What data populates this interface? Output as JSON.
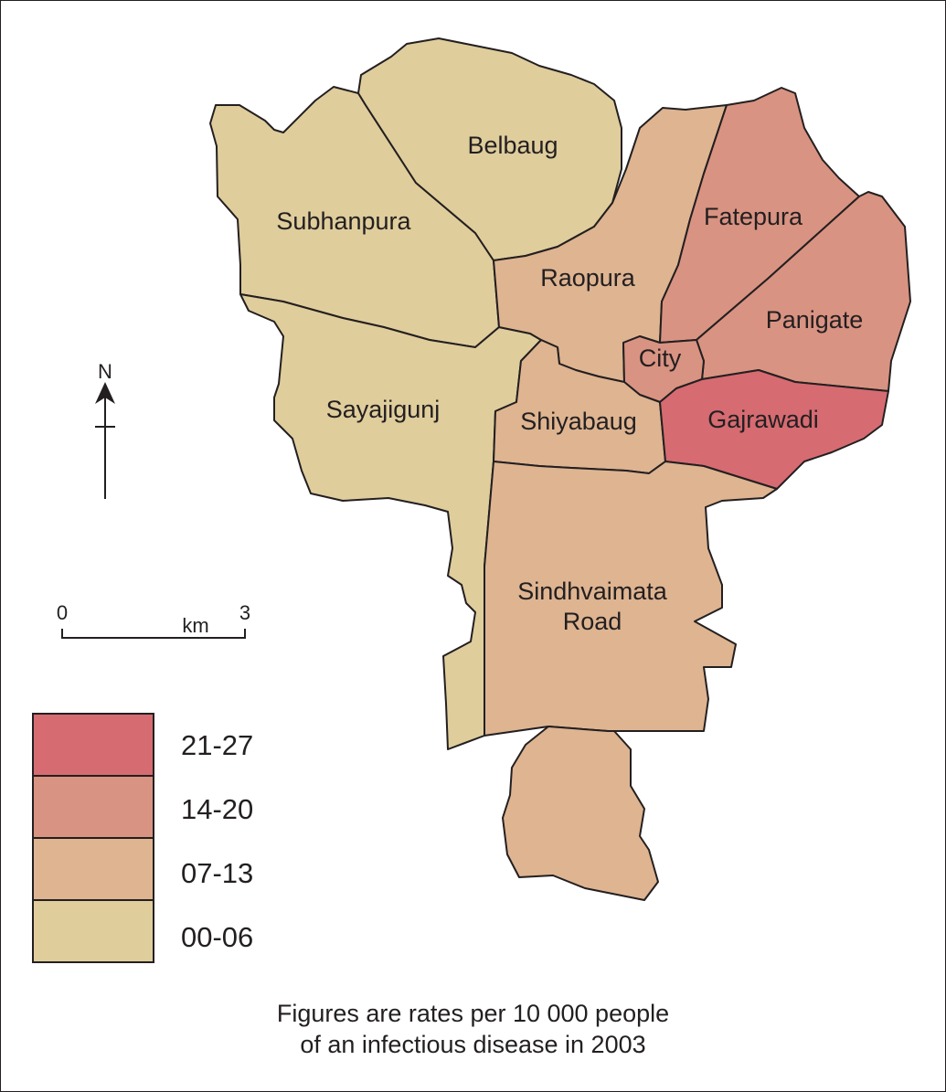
{
  "map": {
    "regions": [
      {
        "id": "subhanpura",
        "label": "Subhanpura",
        "class": "00-06"
      },
      {
        "id": "belbaug",
        "label": "Belbaug",
        "class": "00-06"
      },
      {
        "id": "sayajigunj",
        "label": "Sayajigunj",
        "class": "00-06"
      },
      {
        "id": "raopura",
        "label": "Raopura",
        "class": "07-13"
      },
      {
        "id": "fatepura",
        "label": "Fatepura",
        "class": "14-20"
      },
      {
        "id": "panigate",
        "label": "Panigate",
        "class": "14-20"
      },
      {
        "id": "city",
        "label": "City",
        "class": "14-20"
      },
      {
        "id": "shiyabaug",
        "label": "Shiyabaug",
        "class": "07-13"
      },
      {
        "id": "gajrawadi",
        "label": "Gajrawadi",
        "class": "21-27"
      },
      {
        "id": "sindhvaimata",
        "label_lines": [
          "Sindhvaimata",
          "Road"
        ],
        "class": "07-13"
      }
    ],
    "colors": {
      "00-06": "#dfcd9c",
      "07-13": "#deb491",
      "14-20": "#d99382",
      "21-27": "#d66b72"
    }
  },
  "legend": {
    "items": [
      {
        "label": "21-27",
        "color": "#d66b72"
      },
      {
        "label": "14-20",
        "color": "#d99382"
      },
      {
        "label": "07-13",
        "color": "#deb491"
      },
      {
        "label": "00-06",
        "color": "#dfcd9c"
      }
    ]
  },
  "scale_bar": {
    "start": "0",
    "end": "3",
    "unit": "km"
  },
  "north_arrow": {
    "label": "N"
  },
  "caption": {
    "line1": "Figures are rates per 10 000 people",
    "line2": "of an infectious disease in 2003"
  }
}
